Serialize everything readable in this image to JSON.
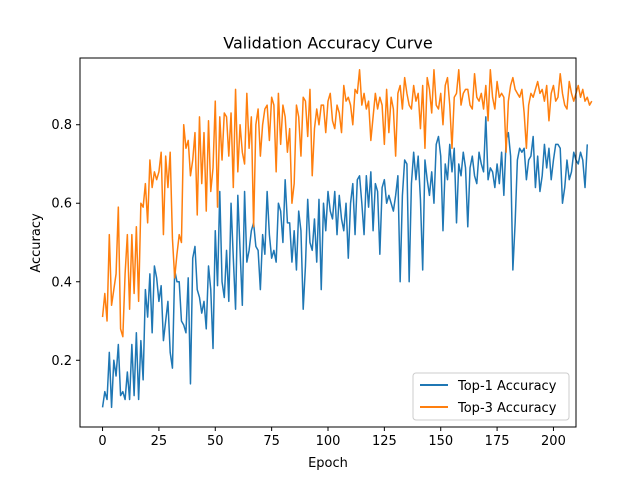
{
  "chart_data": {
    "type": "line",
    "title": "Validation Accuracy Curve",
    "xlabel": "Epoch",
    "ylabel": "Accuracy",
    "xlim": [
      -10,
      210
    ],
    "ylim": [
      0.03,
      0.97
    ],
    "xticks": [
      0,
      25,
      50,
      75,
      100,
      125,
      150,
      175,
      200
    ],
    "yticks": [
      0.2,
      0.4,
      0.6,
      0.8
    ],
    "ytick_labels": [
      "0.2",
      "0.4",
      "0.6",
      "0.8"
    ],
    "grid": false,
    "legend_position": "bottom-right",
    "x_start": 0,
    "x_step": 1,
    "series": [
      {
        "name": "Top-1 Accuracy",
        "color": "#1f77b4",
        "values": [
          0.08,
          0.12,
          0.1,
          0.22,
          0.08,
          0.2,
          0.16,
          0.24,
          0.11,
          0.12,
          0.1,
          0.17,
          0.1,
          0.24,
          0.11,
          0.27,
          0.1,
          0.25,
          0.15,
          0.38,
          0.31,
          0.42,
          0.27,
          0.44,
          0.41,
          0.35,
          0.39,
          0.25,
          0.3,
          0.35,
          0.22,
          0.18,
          0.43,
          0.4,
          0.4,
          0.3,
          0.29,
          0.27,
          0.41,
          0.14,
          0.46,
          0.49,
          0.38,
          0.36,
          0.32,
          0.35,
          0.28,
          0.44,
          0.38,
          0.23,
          0.53,
          0.39,
          0.63,
          0.4,
          0.36,
          0.48,
          0.35,
          0.6,
          0.46,
          0.33,
          0.62,
          0.48,
          0.34,
          0.63,
          0.45,
          0.48,
          0.53,
          0.55,
          0.49,
          0.48,
          0.38,
          0.52,
          0.47,
          0.63,
          0.52,
          0.46,
          0.48,
          0.45,
          0.6,
          0.58,
          0.5,
          0.66,
          0.55,
          0.55,
          0.45,
          0.53,
          0.43,
          0.58,
          0.53,
          0.33,
          0.44,
          0.61,
          0.5,
          0.48,
          0.56,
          0.45,
          0.61,
          0.38,
          0.6,
          0.53,
          0.63,
          0.58,
          0.56,
          0.63,
          0.52,
          0.62,
          0.56,
          0.53,
          0.6,
          0.46,
          0.6,
          0.65,
          0.52,
          0.66,
          0.67,
          0.6,
          0.52,
          0.67,
          0.59,
          0.68,
          0.53,
          0.65,
          0.63,
          0.47,
          0.64,
          0.66,
          0.6,
          0.62,
          0.6,
          0.58,
          0.62,
          0.67,
          0.4,
          0.62,
          0.71,
          0.7,
          0.4,
          0.65,
          0.73,
          0.66,
          0.72,
          0.61,
          0.43,
          0.71,
          0.66,
          0.62,
          0.68,
          0.6,
          0.75,
          0.77,
          0.72,
          0.53,
          0.7,
          0.66,
          0.75,
          0.68,
          0.74,
          0.55,
          0.7,
          0.67,
          0.73,
          0.69,
          0.54,
          0.69,
          0.72,
          0.67,
          0.65,
          0.73,
          0.7,
          0.68,
          0.82,
          0.66,
          0.69,
          0.68,
          0.64,
          0.7,
          0.65,
          0.73,
          0.62,
          0.76,
          0.78,
          0.72,
          0.43,
          0.55,
          0.71,
          0.74,
          0.73,
          0.74,
          0.66,
          0.71,
          0.72,
          0.77,
          0.64,
          0.72,
          0.63,
          0.67,
          0.75,
          0.69,
          0.74,
          0.66,
          0.71,
          0.75,
          0.75,
          0.74,
          0.6,
          0.64,
          0.71,
          0.66,
          0.68,
          0.73,
          0.71,
          0.7,
          0.73,
          0.71,
          0.64,
          0.75
        ]
      },
      {
        "name": "Top-3 Accuracy",
        "color": "#ff7f0e",
        "values": [
          0.31,
          0.37,
          0.3,
          0.52,
          0.34,
          0.38,
          0.42,
          0.59,
          0.28,
          0.26,
          0.42,
          0.52,
          0.33,
          0.52,
          0.37,
          0.54,
          0.35,
          0.6,
          0.59,
          0.65,
          0.55,
          0.71,
          0.64,
          0.68,
          0.66,
          0.68,
          0.73,
          0.52,
          0.72,
          0.64,
          0.73,
          0.51,
          0.41,
          0.47,
          0.52,
          0.5,
          0.8,
          0.74,
          0.76,
          0.67,
          0.71,
          0.78,
          0.57,
          0.82,
          0.65,
          0.78,
          0.58,
          0.81,
          0.63,
          0.69,
          0.86,
          0.59,
          0.82,
          0.71,
          0.83,
          0.82,
          0.72,
          0.83,
          0.64,
          0.89,
          0.68,
          0.8,
          0.73,
          0.7,
          0.88,
          0.74,
          0.82,
          0.54,
          0.8,
          0.84,
          0.72,
          0.8,
          0.84,
          0.85,
          0.76,
          0.87,
          0.85,
          0.68,
          0.88,
          0.75,
          0.85,
          0.82,
          0.73,
          0.79,
          0.6,
          0.65,
          0.85,
          0.82,
          0.72,
          0.87,
          0.86,
          0.77,
          0.89,
          0.67,
          0.79,
          0.84,
          0.8,
          0.85,
          0.85,
          0.78,
          0.86,
          0.88,
          0.81,
          0.79,
          0.85,
          0.83,
          0.78,
          0.9,
          0.86,
          0.87,
          0.85,
          0.8,
          0.89,
          0.88,
          0.94,
          0.85,
          0.88,
          0.84,
          0.86,
          0.76,
          0.82,
          0.88,
          0.84,
          0.87,
          0.85,
          0.75,
          0.89,
          0.78,
          0.87,
          0.84,
          0.72,
          0.88,
          0.9,
          0.84,
          0.92,
          0.88,
          0.85,
          0.84,
          0.9,
          0.86,
          0.88,
          0.79,
          0.9,
          0.74,
          0.92,
          0.89,
          0.83,
          0.94,
          0.85,
          0.84,
          0.88,
          0.8,
          0.9,
          0.92,
          0.85,
          0.74,
          0.87,
          0.88,
          0.94,
          0.85,
          0.88,
          0.89,
          0.89,
          0.85,
          0.84,
          0.93,
          0.87,
          0.86,
          0.88,
          0.84,
          0.9,
          0.81,
          0.94,
          0.87,
          0.84,
          0.91,
          0.87,
          0.88,
          0.87,
          0.73,
          0.86,
          0.9,
          0.92,
          0.89,
          0.88,
          0.87,
          0.89,
          0.83,
          0.74,
          0.85,
          0.88,
          0.87,
          0.89,
          0.91,
          0.88,
          0.89,
          0.86,
          0.9,
          0.81,
          0.88,
          0.9,
          0.86,
          0.87,
          0.93,
          0.88,
          0.85,
          0.84,
          0.91,
          0.88,
          0.86,
          0.88,
          0.9,
          0.87,
          0.89,
          0.86,
          0.87,
          0.85,
          0.86
        ]
      }
    ]
  }
}
